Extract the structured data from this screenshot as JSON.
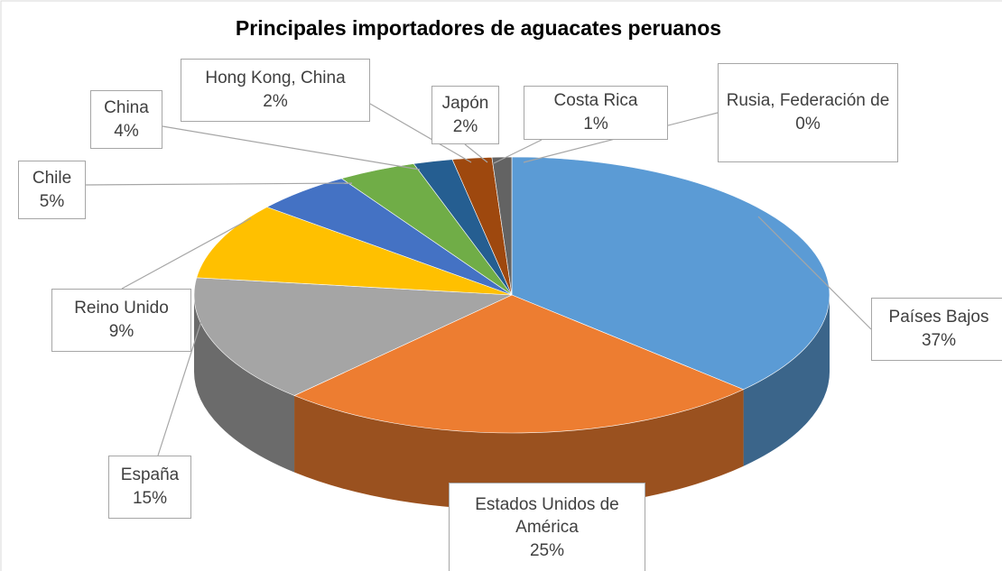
{
  "chart_data": {
    "type": "pie",
    "title": "Principales importadores de aguacates peruanos",
    "categories": [
      "Países Bajos",
      "Estados Unidos de América",
      "España",
      "Reino Unido",
      "Chile",
      "China",
      "Hong Kong, China",
      "Japón",
      "Costa Rica",
      "Rusia, Federación de"
    ],
    "values": [
      37,
      25,
      15,
      9,
      5,
      4,
      2,
      2,
      1,
      0
    ],
    "value_labels": [
      "37%",
      "25%",
      "15%",
      "9%",
      "5%",
      "4%",
      "2%",
      "2%",
      "1%",
      "0%"
    ],
    "colors": [
      "#5b9bd5",
      "#ed7d31",
      "#a5a5a5",
      "#ffc000",
      "#4472c4",
      "#70ad47",
      "#255e91",
      "#9e480e",
      "#636363",
      "#997300"
    ]
  }
}
